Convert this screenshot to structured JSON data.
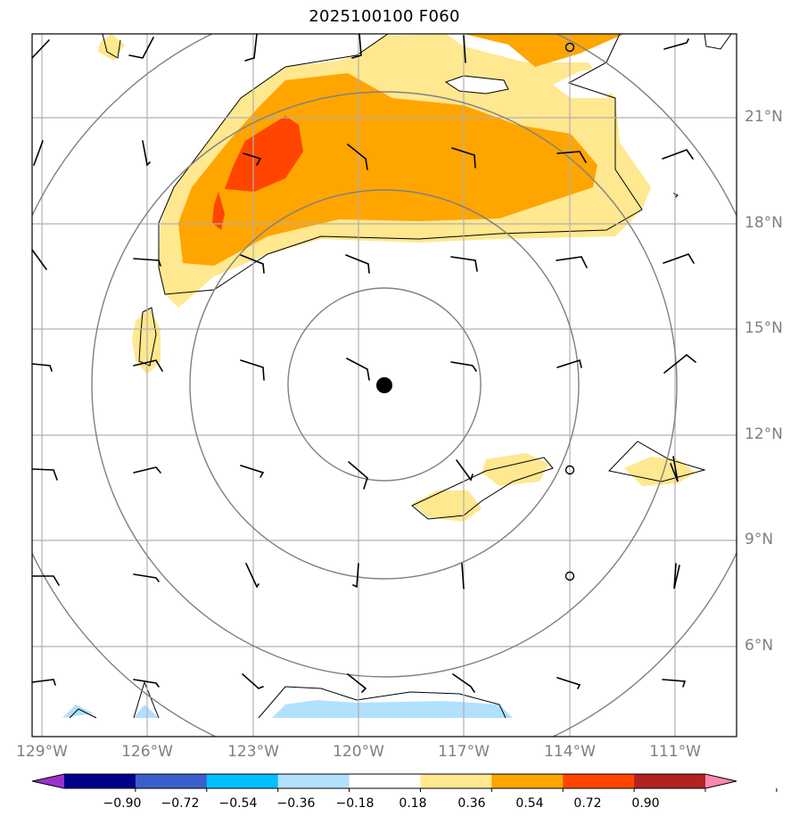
{
  "title": "2025100100 F060",
  "map": {
    "lat_labels": [
      "21°N",
      "18°N",
      "15°N",
      "12°N",
      "9°N",
      "6°N"
    ],
    "lon_labels": [
      "129°W",
      "126°W",
      "123°W",
      "120°W",
      "117°W",
      "114°W",
      "111°W"
    ],
    "storm_center": {
      "lon": "119.2°W",
      "lat": "13.4°N"
    }
  },
  "colorbar": {
    "ticks": [
      "−0.90",
      "−0.72",
      "−0.54",
      "−0.36",
      "−0.18",
      "0.18",
      "0.36",
      "0.54",
      "0.72",
      "0.90"
    ],
    "colors": [
      "#9932cc",
      "#00008b",
      "#3a5fcd",
      "#00bfff",
      "#b2e0ff",
      "#ffffff",
      "#ffe88f",
      "#ffa500",
      "#ff4500",
      "#b22222",
      "#ff88b0"
    ]
  }
}
